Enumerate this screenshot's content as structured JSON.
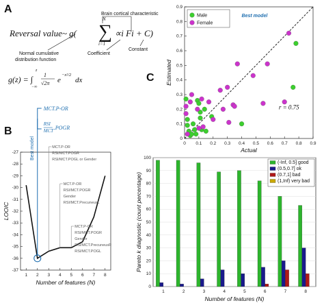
{
  "panelA": {
    "letter": "A",
    "formula_main": "Reversal value~ g(",
    "sum_upper": "N",
    "sum_lower": "i=1",
    "formula_terms": "∝i Fi + C)",
    "annot_brain": "Brain cortical characteristic",
    "annot_normal_1": "Normal cumulative",
    "annot_normal_2": "distribution function",
    "annot_coef": "Coefficient",
    "annot_const": "Constant",
    "formula_gz": "g(z) = ∫"
  },
  "panelB": {
    "letter": "B"
  },
  "panelC": {
    "letter": "C"
  },
  "chart_data": [
    {
      "id": "looic",
      "type": "line",
      "title": "",
      "xlabel": "Number of features (N)",
      "ylabel": "LOOIC",
      "x": [
        1,
        2,
        3,
        4,
        5,
        6,
        7,
        8
      ],
      "values": [
        -29.8,
        -36.0,
        -35.4,
        -35.1,
        -35.1,
        -34.6,
        -32.5,
        -29.0
      ],
      "xlim": [
        0.5,
        8.5
      ],
      "ylim": [
        -37,
        -27
      ],
      "xticks": [
        "1",
        "2",
        "3",
        "4",
        "5",
        "6",
        "7",
        "8"
      ],
      "yticks": [
        "-37",
        "-36",
        "-35",
        "-34",
        "-33",
        "-32",
        "-31",
        "-30",
        "-29",
        "-28",
        "-27"
      ],
      "best_model_label": "Best model",
      "best_model_x": 2,
      "best_formula_1": "MCT.P-OR",
      "best_formula_2_num": "RSI",
      "best_formula_2_den": "MCT",
      "best_formula_2_tail": ".POGR",
      "feature_annotations": [
        {
          "x": 3,
          "lines": [
            "MCT.P-OR",
            "RSI/MCT.POGR",
            "RSI/MCT.POGL or Gender"
          ]
        },
        {
          "x": 4,
          "lines": [
            "MCT.P-OR",
            "RSI/MCT.POGR",
            "Gender",
            "RSI/MCT.PrecuneusL"
          ]
        },
        {
          "x": 5,
          "lines": [
            "MCT.P-OR",
            "RSI/MCT.POGR",
            "Gender",
            "RSI/MCT.PrecuneusR",
            "RSI/MCT.POGL"
          ]
        }
      ]
    },
    {
      "id": "scatter",
      "type": "scatter",
      "title": "Best model",
      "xlabel": "Actual",
      "ylabel": "Estimated",
      "xlim": [
        0,
        0.9
      ],
      "ylim": [
        0,
        0.9
      ],
      "xticks": [
        "0",
        "0.1",
        "0.2",
        "0.3",
        "0.4",
        "0.5",
        "0.6",
        "0.7",
        "0.8",
        "0.9"
      ],
      "yticks": [
        "0",
        "0.1",
        "0.2",
        "0.3",
        "0.4",
        "0.5",
        "0.6",
        "0.7",
        "0.8",
        "0.9"
      ],
      "annotation": "r = 0.75",
      "legend": "top-left",
      "series": [
        {
          "name": "Male",
          "color": "#3ccf2e",
          "points": [
            [
              0.01,
              0.27
            ],
            [
              0.02,
              0.13
            ],
            [
              0.02,
              0.09
            ],
            [
              0.03,
              0.05
            ],
            [
              0.04,
              0.02
            ],
            [
              0.05,
              0.03
            ],
            [
              0.06,
              0.1
            ],
            [
              0.07,
              0.06
            ],
            [
              0.08,
              0.03
            ],
            [
              0.09,
              0.26
            ],
            [
              0.1,
              0.24
            ],
            [
              0.11,
              0.18
            ],
            [
              0.11,
              0.14
            ],
            [
              0.12,
              0.06
            ],
            [
              0.14,
              0.2
            ],
            [
              0.15,
              0.05
            ],
            [
              0.19,
              0.15
            ],
            [
              0.4,
              0.1
            ],
            [
              0.76,
              0.35
            ],
            [
              0.78,
              0.65
            ]
          ]
        },
        {
          "name": "Female",
          "color": "#cc33cc",
          "points": [
            [
              0.01,
              0.22
            ],
            [
              0.01,
              0.17
            ],
            [
              0.02,
              0.03
            ],
            [
              0.04,
              0.25
            ],
            [
              0.05,
              0.3
            ],
            [
              0.09,
              0.2
            ],
            [
              0.1,
              0.07
            ],
            [
              0.12,
              0.27
            ],
            [
              0.13,
              0.08
            ],
            [
              0.17,
              0.25
            ],
            [
              0.2,
              0.13
            ],
            [
              0.25,
              0.33
            ],
            [
              0.27,
              0.2
            ],
            [
              0.3,
              0.35
            ],
            [
              0.31,
              0.11
            ],
            [
              0.34,
              0.23
            ],
            [
              0.35,
              0.22
            ],
            [
              0.37,
              0.51
            ],
            [
              0.48,
              0.43
            ],
            [
              0.55,
              0.24
            ],
            [
              0.58,
              0.51
            ],
            [
              0.7,
              0.25
            ],
            [
              0.73,
              0.72
            ]
          ]
        }
      ]
    },
    {
      "id": "pareto",
      "type": "bar",
      "title": "",
      "xlabel": "Number of features (N)",
      "ylabel": "Pareto k diagnostic (count percentage)",
      "categories": [
        "1",
        "2",
        "3",
        "4",
        "5",
        "6",
        "7",
        "8"
      ],
      "ylim": [
        0,
        100
      ],
      "yticks": [
        "0",
        "10",
        "20",
        "30",
        "40",
        "50",
        "60",
        "70",
        "80",
        "90",
        "100"
      ],
      "legend": "top-right",
      "series": [
        {
          "name": "(-Inf, 0.5] good",
          "color": "#2db52d",
          "values": [
            98,
            98,
            96,
            89,
            90,
            82,
            70,
            63
          ]
        },
        {
          "name": "(0.5,0.7] ok",
          "color": "#1a1a8c",
          "values": [
            3,
            2,
            6,
            13,
            10,
            15,
            20,
            30
          ]
        },
        {
          "name": "(0.7,1] bad",
          "color": "#b01818",
          "values": [
            0,
            0,
            0,
            0,
            0,
            2,
            13,
            10
          ]
        },
        {
          "name": "(1,Inf) very bad",
          "color": "#c9a800",
          "values": [
            0,
            0,
            0,
            0,
            0,
            0,
            0,
            0
          ]
        }
      ]
    }
  ]
}
